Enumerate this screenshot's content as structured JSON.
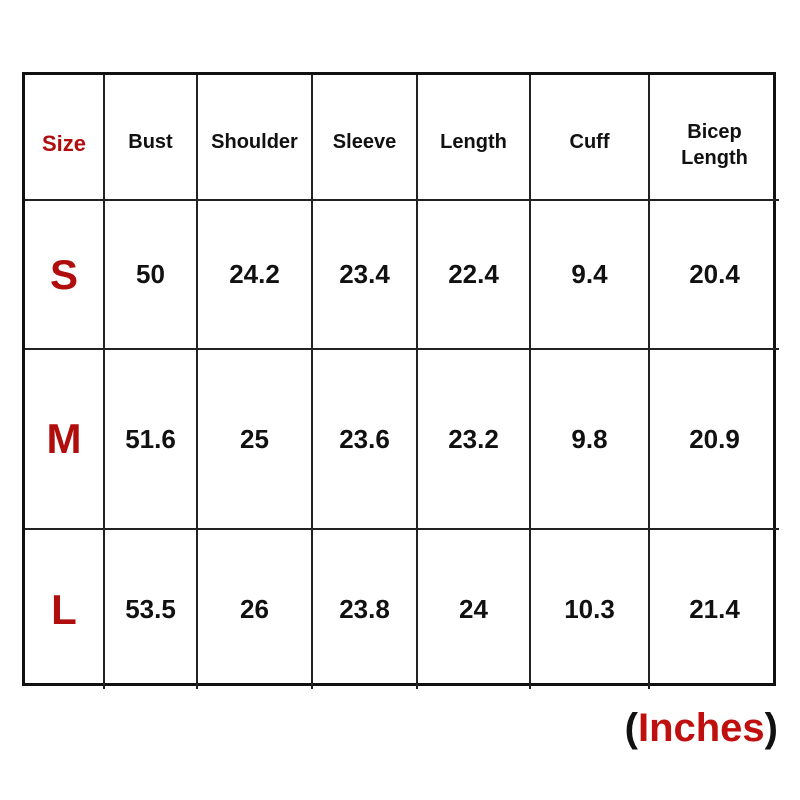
{
  "table": {
    "header": [
      "Size",
      "Bust",
      "Shoulder",
      "Sleeve",
      "Length",
      "Cuff",
      "Bicep Length"
    ],
    "rows": [
      [
        "S",
        "50",
        "24.2",
        "23.4",
        "22.4",
        "9.4",
        "20.4"
      ],
      [
        "M",
        "51.6",
        "25",
        "23.6",
        "23.2",
        "9.8",
        "20.9"
      ],
      [
        "L",
        "53.5",
        "26",
        "23.8",
        "24",
        "10.3",
        "21.4"
      ]
    ]
  },
  "note": {
    "open": "(",
    "text": "Inches",
    "close": ")"
  }
}
